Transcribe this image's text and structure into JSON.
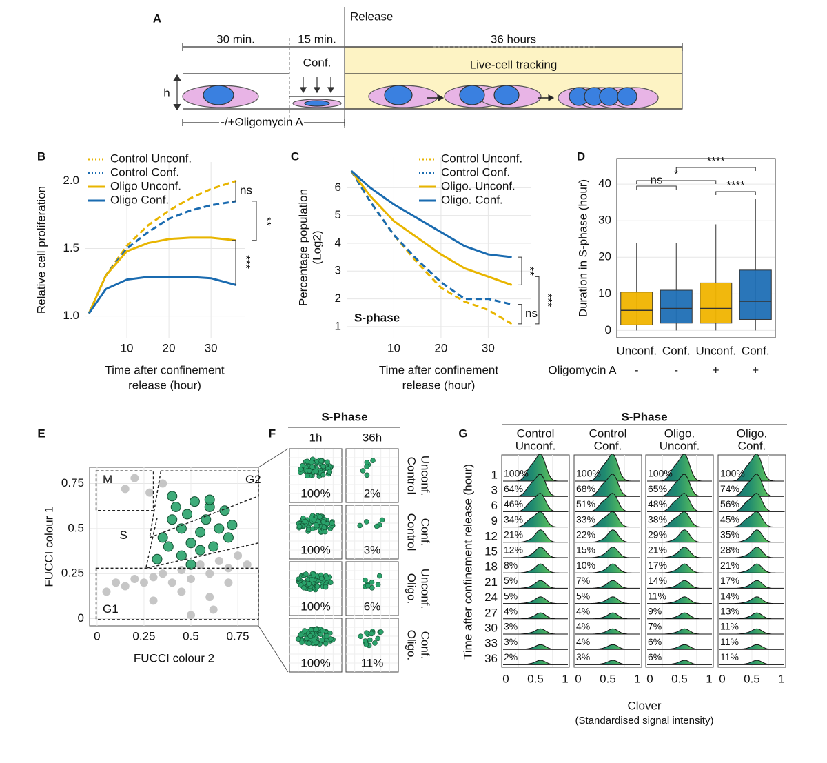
{
  "figure": {
    "panel_labels": [
      "A",
      "B",
      "C",
      "D",
      "E",
      "F",
      "G"
    ],
    "panel_a": {
      "durations": [
        "30 min.",
        "15 min.",
        "36 hours"
      ],
      "release": "Release",
      "conf": "Conf.",
      "tracking": "Live-cell tracking",
      "height": "h",
      "treatment": "-/+Oligomycin A"
    }
  },
  "chart_data": [
    {
      "type": "line",
      "ylabel": [
        "Relative cell proliferation"
      ],
      "xlabel": [
        "Time after confinement",
        "release (hour)"
      ],
      "x": [
        1,
        5,
        10,
        15,
        20,
        25,
        30,
        36
      ],
      "series": [
        {
          "name": "Control Unconf.",
          "color": "#e8b500",
          "linestyle": "dashed",
          "values": [
            1.02,
            1.3,
            1.52,
            1.67,
            1.78,
            1.87,
            1.94,
            2.0
          ]
        },
        {
          "name": "Control Conf.",
          "color": "#1a6bb0",
          "linestyle": "dashed",
          "values": [
            1.02,
            1.3,
            1.5,
            1.62,
            1.72,
            1.78,
            1.82,
            1.85
          ]
        },
        {
          "name": "Oligo Unconf.",
          "color": "#e8b500",
          "linestyle": "solid",
          "values": [
            1.02,
            1.3,
            1.48,
            1.54,
            1.57,
            1.58,
            1.58,
            1.56
          ]
        },
        {
          "name": "Oligo Conf.",
          "color": "#1a6bb0",
          "linestyle": "solid",
          "values": [
            1.02,
            1.2,
            1.27,
            1.29,
            1.29,
            1.29,
            1.28,
            1.23
          ]
        }
      ],
      "xlim": [
        0,
        38
      ],
      "ylim": [
        0.84,
        2.14
      ],
      "xticks": [
        10,
        20,
        30
      ],
      "yticks": [
        {
          "value": 1,
          "label": "1.0"
        },
        1.5,
        {
          "value": 2,
          "label": "2.0"
        }
      ],
      "grid": true,
      "annotations": [
        "ns",
        "**",
        "***"
      ]
    },
    {
      "type": "line",
      "ylabel": [
        "Percentage population",
        "(Log2)"
      ],
      "xlabel": [
        "Time after confinement",
        "release (hour)"
      ],
      "x": [
        1,
        5,
        10,
        15,
        20,
        25,
        30,
        35
      ],
      "series": [
        {
          "name": "Control Unconf.",
          "color": "#e8b500",
          "linestyle": "dashed",
          "values": [
            6.6,
            5.5,
            4.3,
            3.3,
            2.4,
            1.9,
            1.6,
            1.1
          ]
        },
        {
          "name": "Control Conf.",
          "color": "#1a6bb0",
          "linestyle": "dashed",
          "values": [
            6.6,
            5.5,
            4.3,
            3.4,
            2.6,
            2.0,
            2.0,
            1.8
          ]
        },
        {
          "name": "Oligo. Unconf.",
          "color": "#e8b500",
          "linestyle": "solid",
          "values": [
            6.6,
            5.7,
            4.8,
            4.2,
            3.6,
            3.1,
            2.8,
            2.5
          ]
        },
        {
          "name": "Oligo. Conf.",
          "color": "#1a6bb0",
          "linestyle": "solid",
          "values": [
            6.6,
            6.0,
            5.4,
            4.9,
            4.4,
            3.9,
            3.6,
            3.5
          ]
        }
      ],
      "xlim": [
        0,
        39
      ],
      "ylim": [
        0.6,
        7.1
      ],
      "xticks": [
        10,
        20,
        30
      ],
      "yticks": [
        1,
        2,
        3,
        4,
        5,
        6
      ],
      "grid": true,
      "annotations": [
        "**",
        "***",
        "ns",
        "S-phase"
      ]
    },
    {
      "type": "box",
      "ylabel": [
        "Duration in S-phase (hour)"
      ],
      "categories": [
        "Unconf.",
        "Conf.",
        "Unconf.",
        "Conf."
      ],
      "colors": [
        "#f0b400",
        "#1f6fb5",
        "#f0b400",
        "#1f6fb5"
      ],
      "stats": [
        {
          "low": 0,
          "q1": 1.5,
          "median": 5.5,
          "q3": 10.5,
          "high": 24
        },
        {
          "low": 0,
          "q1": 2,
          "median": 6,
          "q3": 11,
          "high": 24
        },
        {
          "low": 0,
          "q1": 2,
          "median": 6,
          "q3": 13,
          "high": 29
        },
        {
          "low": 0,
          "q1": 3,
          "median": 8,
          "q3": 16.5,
          "high": 36
        }
      ],
      "groups": {
        "label": "Oligomycin A",
        "values": [
          "-",
          "-",
          "+",
          "+"
        ]
      },
      "ylim": [
        -2,
        47
      ],
      "yticks": [
        0,
        10,
        20,
        30,
        40
      ],
      "grid": true,
      "annotations": [
        "ns",
        "*",
        "****",
        "****"
      ]
    },
    {
      "type": "scatter",
      "xlabel": [
        "FUCCI colour 2"
      ],
      "ylabel": [
        "FUCCI colour 1"
      ],
      "series": [
        {
          "color": "#c0c0c0",
          "x": [
            0.05,
            0.1,
            0.15,
            0.2,
            0.25,
            0.3,
            0.35,
            0.4,
            0.45,
            0.5,
            0.55,
            0.6,
            0.65,
            0.7,
            0.75,
            0.8,
            0.3,
            0.45,
            0.6,
            0.7,
            0.15,
            0.2,
            0.28,
            0.35,
            0.5,
            0.62
          ],
          "values": [
            0.15,
            0.2,
            0.18,
            0.22,
            0.2,
            0.23,
            0.25,
            0.2,
            0.27,
            0.22,
            0.3,
            0.25,
            0.32,
            0.28,
            0.35,
            0.3,
            0.1,
            0.15,
            0.12,
            0.2,
            0.72,
            0.78,
            0.7,
            0.75,
            0.02,
            0.05
          ]
        },
        {
          "color": "#2aa36b",
          "x": [
            0.32,
            0.35,
            0.38,
            0.4,
            0.42,
            0.45,
            0.48,
            0.5,
            0.52,
            0.55,
            0.58,
            0.6,
            0.62,
            0.65,
            0.68,
            0.7,
            0.72,
            0.45,
            0.55,
            0.4,
            0.6,
            0.5
          ],
          "values": [
            0.33,
            0.45,
            0.4,
            0.55,
            0.62,
            0.5,
            0.58,
            0.42,
            0.65,
            0.48,
            0.55,
            0.62,
            0.4,
            0.5,
            0.6,
            0.45,
            0.52,
            0.35,
            0.38,
            0.68,
            0.66,
            0.3
          ]
        }
      ],
      "xlim": [
        -0.04,
        0.86
      ],
      "ylim": [
        -0.04,
        0.84
      ],
      "xticks": [
        0,
        0.25,
        0.5,
        0.75
      ],
      "yticks": [
        0,
        0.25,
        0.5,
        0.75
      ],
      "grid": true,
      "regions": [
        "M",
        "G2",
        "S",
        "G1"
      ]
    }
  ],
  "panel_f": {
    "title": "S-Phase",
    "columns": [
      "1h",
      "36h"
    ],
    "rows": [
      {
        "label": [
          "Control",
          "Unconf."
        ],
        "values": [
          "100%",
          "2%"
        ]
      },
      {
        "label": [
          "Control",
          "Conf."
        ],
        "values": [
          "100%",
          "3%"
        ]
      },
      {
        "label": [
          "Oligo.",
          "Unconf."
        ],
        "values": [
          "100%",
          "6%"
        ]
      },
      {
        "label": [
          "Oligo.",
          "Conf."
        ],
        "values": [
          "100%",
          "11%"
        ]
      }
    ]
  },
  "panel_g": {
    "title": "S-Phase",
    "columns": [
      {
        "label": [
          "Control",
          "Unconf."
        ],
        "values": [
          "100%",
          "64%",
          "46%",
          "34%",
          "21%",
          "12%",
          "8%",
          "5%",
          "5%",
          "4%",
          "3%",
          "3%",
          "2%"
        ]
      },
      {
        "label": [
          "Control",
          "Conf."
        ],
        "values": [
          "100%",
          "68%",
          "51%",
          "33%",
          "22%",
          "15%",
          "10%",
          "7%",
          "5%",
          "4%",
          "4%",
          "4%",
          "3%"
        ]
      },
      {
        "label": [
          "Oligo.",
          "Unconf."
        ],
        "values": [
          "100%",
          "65%",
          "48%",
          "38%",
          "29%",
          "21%",
          "17%",
          "14%",
          "11%",
          "9%",
          "7%",
          "6%",
          "6%"
        ]
      },
      {
        "label": [
          "Oligo.",
          "Conf."
        ],
        "values": [
          "100%",
          "74%",
          "56%",
          "45%",
          "35%",
          "28%",
          "21%",
          "17%",
          "14%",
          "13%",
          "11%",
          "11%",
          "11%"
        ]
      }
    ],
    "rows": [
      "1",
      "3",
      "6",
      "9",
      "12",
      "15",
      "18",
      "21",
      "24",
      "27",
      "30",
      "33",
      "36"
    ],
    "xticks": [
      "0",
      "0.5",
      "1"
    ],
    "xlabel": "Clover",
    "xlabel_sub": "(Standardised signal intensity)",
    "ylabel": "Time after confinement release (hour)"
  }
}
